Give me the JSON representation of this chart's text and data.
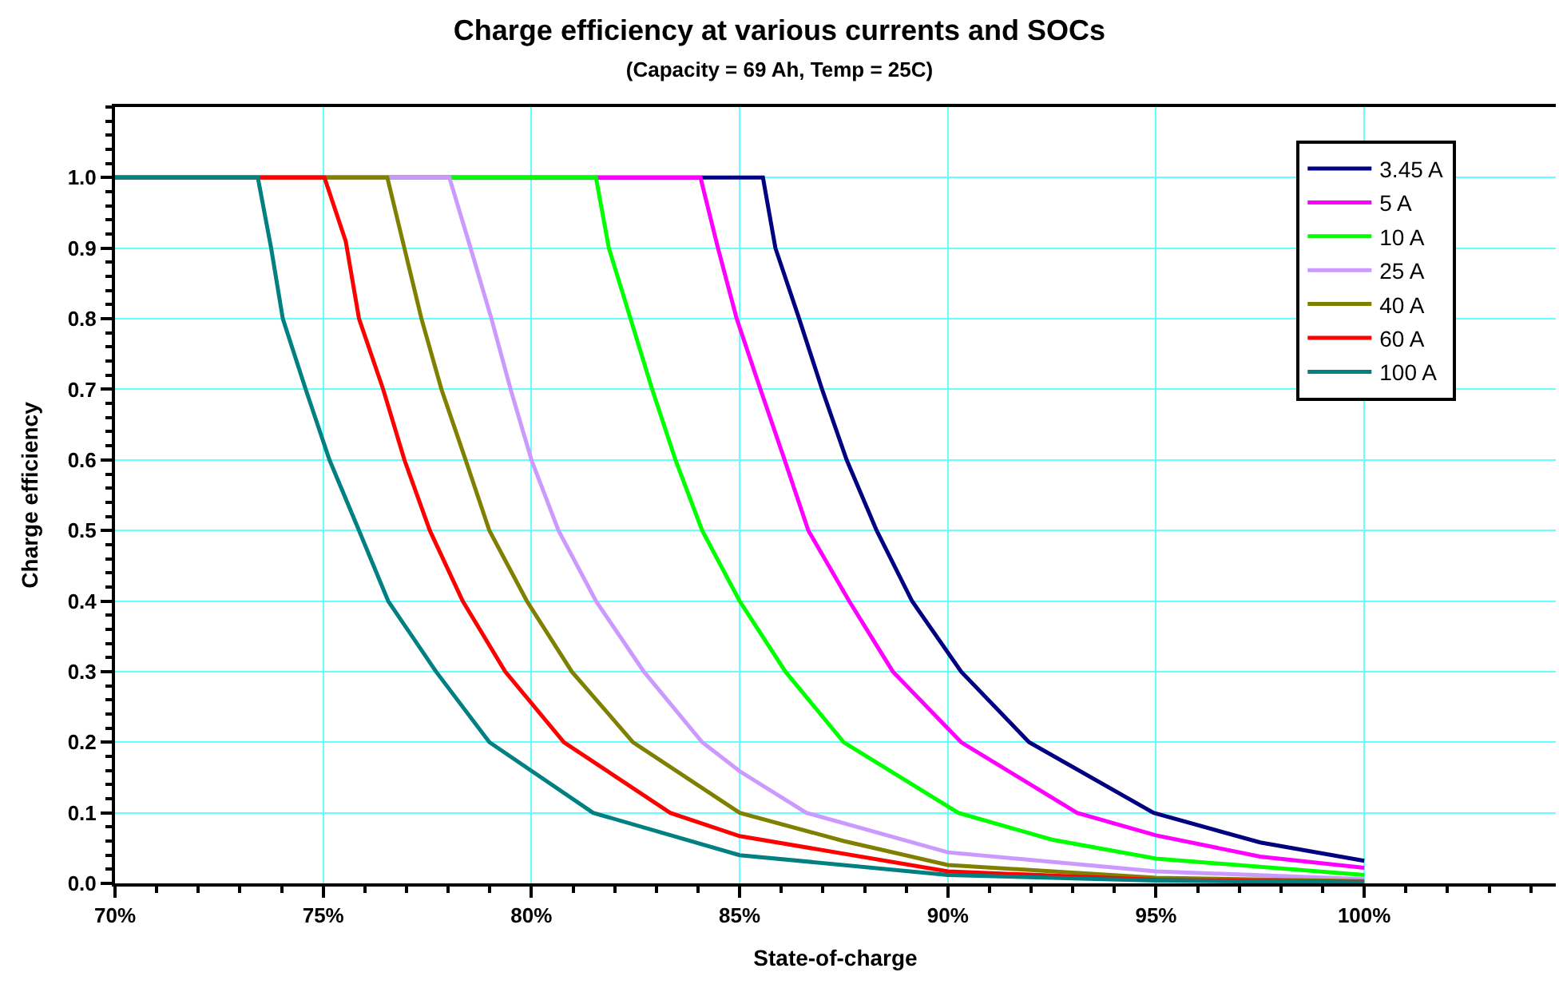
{
  "chart_data": {
    "type": "line",
    "title": "Charge efficiency at various currents and SOCs",
    "subtitle": "(Capacity = 69 Ah, Temp = 25C)",
    "xlabel": "State-of-charge",
    "ylabel": "Charge efficiency",
    "xlim": [
      70,
      104.6
    ],
    "ylim": [
      0,
      1.1
    ],
    "xticks": [
      {
        "value": 70,
        "label": "70%"
      },
      {
        "value": 75,
        "label": "75%"
      },
      {
        "value": 80,
        "label": "80%"
      },
      {
        "value": 85,
        "label": "85%"
      },
      {
        "value": 90,
        "label": "90%"
      },
      {
        "value": 95,
        "label": "95%"
      },
      {
        "value": 100,
        "label": "100%"
      }
    ],
    "yticks": [
      {
        "value": 0,
        "label": "0.0"
      },
      {
        "value": 0.1,
        "label": "0.1"
      },
      {
        "value": 0.2,
        "label": "0.2"
      },
      {
        "value": 0.3,
        "label": "0.3"
      },
      {
        "value": 0.4,
        "label": "0.4"
      },
      {
        "value": 0.5,
        "label": "0.5"
      },
      {
        "value": 0.6,
        "label": "0.6"
      },
      {
        "value": 0.7,
        "label": "0.7"
      },
      {
        "value": 0.8,
        "label": "0.8"
      },
      {
        "value": 0.9,
        "label": "0.9"
      },
      {
        "value": 1.0,
        "label": "1.0"
      }
    ],
    "grid": true,
    "legend": "top right",
    "marker": "none",
    "line_style": "solid",
    "series": [
      {
        "name": "3.45 A",
        "color": "#000080",
        "x": [
          70,
          85.56,
          85.86,
          86.43,
          86.98,
          87.57,
          88.29,
          89.14,
          90.32,
          91.95,
          94.94,
          97.5,
          100
        ],
        "values": [
          1.0,
          1.0,
          0.9,
          0.8,
          0.7,
          0.6,
          0.5,
          0.4,
          0.3,
          0.2,
          0.1,
          0.058,
          0.032
        ]
      },
      {
        "name": "5 A",
        "color": "#ff00ff",
        "x": [
          70,
          84.06,
          84.48,
          84.93,
          85.5,
          86.08,
          86.65,
          87.63,
          88.68,
          90.32,
          93.1,
          95,
          97.5,
          100
        ],
        "values": [
          1.0,
          1.0,
          0.9,
          0.8,
          0.7,
          0.6,
          0.5,
          0.4,
          0.3,
          0.2,
          0.1,
          0.068,
          0.038,
          0.022
        ]
      },
      {
        "name": "10 A",
        "color": "#00ff00",
        "x": [
          70,
          81.55,
          81.86,
          82.38,
          82.9,
          83.46,
          84.1,
          85.0,
          86.1,
          87.5,
          90.25,
          92.5,
          95,
          100
        ],
        "values": [
          1.0,
          1.0,
          0.9,
          0.8,
          0.7,
          0.6,
          0.5,
          0.4,
          0.3,
          0.2,
          0.1,
          0.062,
          0.035,
          0.012
        ]
      },
      {
        "name": "25 A",
        "color": "#cc99ff",
        "x": [
          70,
          78.03,
          78.54,
          79.04,
          79.5,
          80.0,
          80.65,
          81.55,
          82.7,
          84.1,
          85.0,
          86.6,
          90,
          95,
          100
        ],
        "values": [
          1.0,
          1.0,
          0.9,
          0.8,
          0.7,
          0.6,
          0.5,
          0.4,
          0.3,
          0.2,
          0.159,
          0.1,
          0.044,
          0.017,
          0.006
        ]
      },
      {
        "name": "40 A",
        "color": "#808000",
        "x": [
          70,
          76.54,
          76.95,
          77.36,
          77.84,
          78.42,
          78.99,
          79.89,
          80.97,
          82.44,
          85.0,
          87.5,
          90,
          95,
          100
        ],
        "values": [
          1.0,
          1.0,
          0.9,
          0.8,
          0.7,
          0.6,
          0.5,
          0.4,
          0.3,
          0.2,
          0.1,
          0.06,
          0.026,
          0.008,
          0.003
        ]
      },
      {
        "name": "60 A",
        "color": "#ff0000",
        "x": [
          70,
          75.03,
          75.54,
          75.86,
          76.44,
          76.95,
          77.56,
          78.35,
          79.37,
          80.78,
          83.33,
          85,
          90,
          95,
          100
        ],
        "values": [
          1.0,
          1.0,
          0.91,
          0.8,
          0.7,
          0.6,
          0.5,
          0.4,
          0.3,
          0.2,
          0.1,
          0.067,
          0.017,
          0.005,
          0.002
        ]
      },
      {
        "name": "100 A",
        "color": "#008080",
        "x": [
          70,
          73.43,
          73.75,
          74.03,
          74.58,
          75.15,
          75.86,
          76.56,
          77.71,
          78.99,
          81.48,
          85,
          90,
          95,
          100
        ],
        "values": [
          1.0,
          1.0,
          0.9,
          0.8,
          0.7,
          0.6,
          0.5,
          0.4,
          0.3,
          0.2,
          0.1,
          0.04,
          0.012,
          0.004,
          0.001
        ]
      }
    ]
  }
}
